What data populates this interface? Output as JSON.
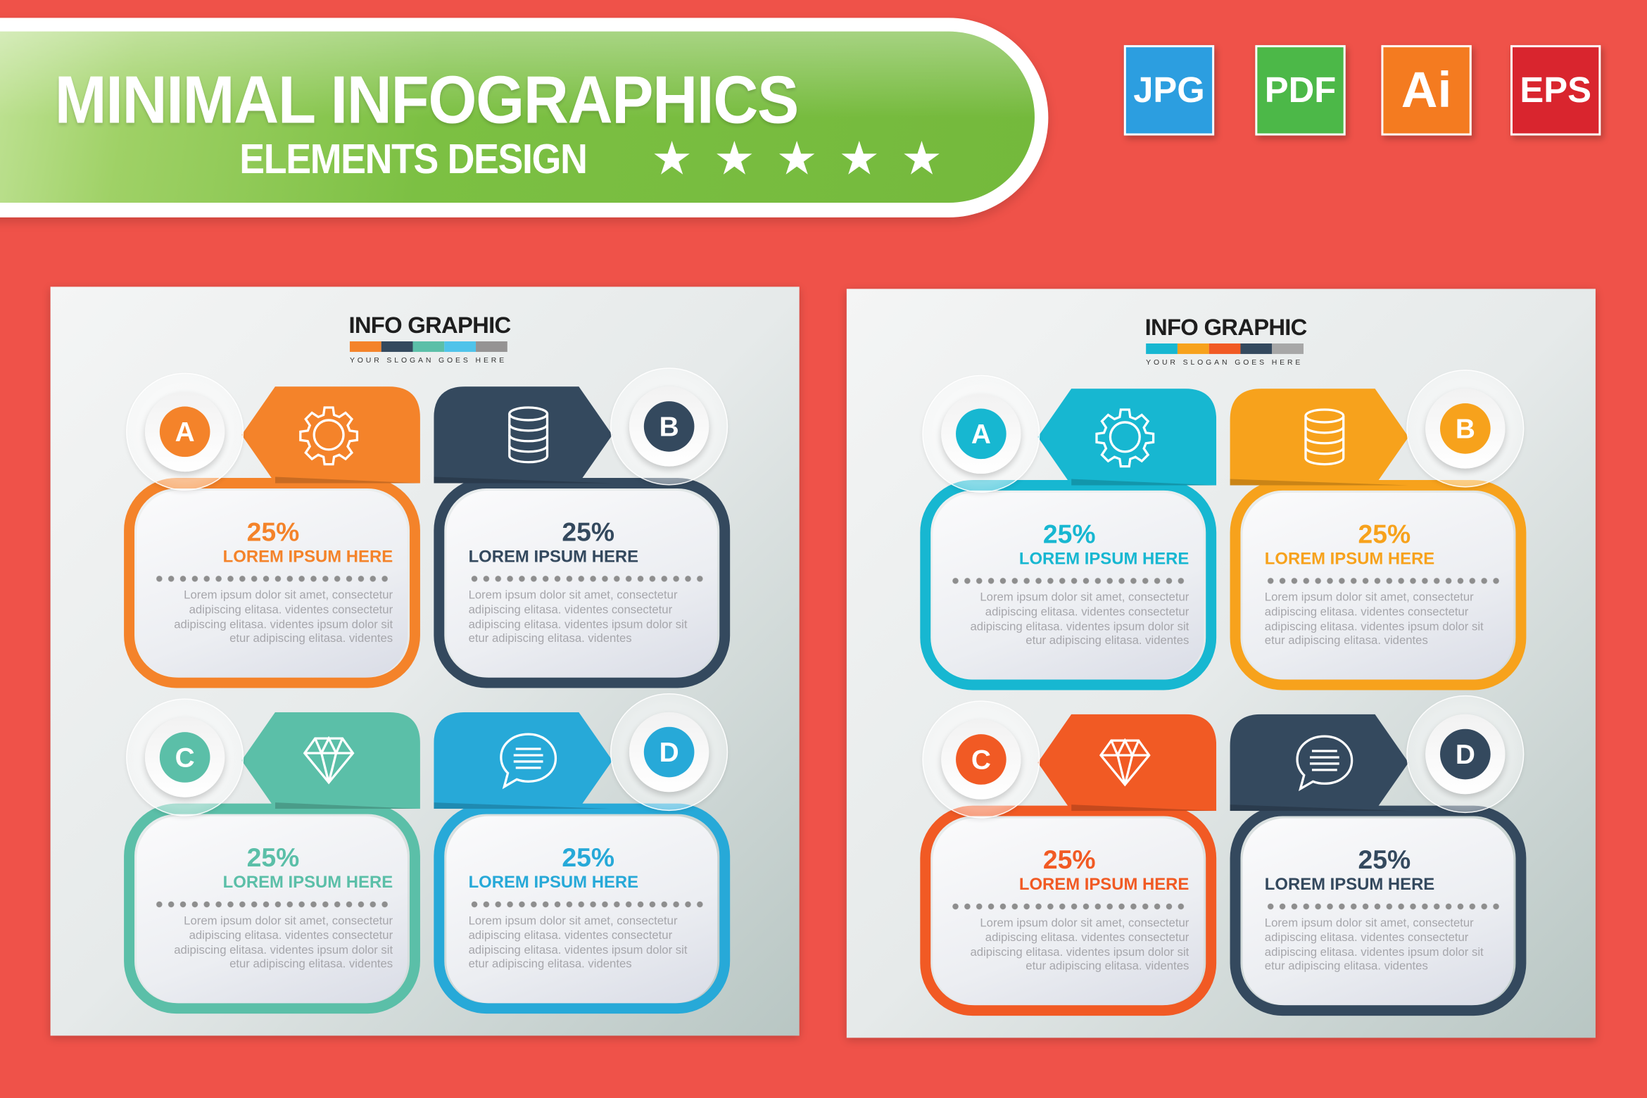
{
  "banner": {
    "title": "MINIMAL INFOGRAPHICS",
    "subtitle": "ELEMENTS DESIGN",
    "stars": 5,
    "colors": {
      "green": "#7cc043",
      "border": "#ffffff"
    }
  },
  "badges": [
    {
      "label": "JPG",
      "color": "#2c9ee0"
    },
    {
      "label": "PDF",
      "color": "#4cb848"
    },
    {
      "label": "Ai",
      "color": "#f47b20"
    },
    {
      "label": "EPS",
      "color": "#d9252e"
    }
  ],
  "background_color": "#ef5249",
  "panels": [
    {
      "title": "INFO GRAPHIC",
      "slogan": "YOUR SLOGAN GOES HERE",
      "bar_colors": [
        "#f4832a",
        "#34495e",
        "#5bbfa8",
        "#4fc3ea",
        "#959393"
      ],
      "cards": [
        {
          "letter": "A",
          "icon": "gear-icon",
          "color": "#f4832a",
          "percent": "25%",
          "title": "LOREM IPSUM HERE",
          "body": [
            "Lorem ipsum dolor sit amet, consectetur",
            "adipiscing elitasa. videntes  consectetur",
            "adipiscing elitasa. videntes ipsum dolor sit",
            "etur adipiscing elitasa. videntes"
          ],
          "title_color": "#f4832a",
          "pct_color": "#f4832a"
        },
        {
          "letter": "B",
          "icon": "database-icon",
          "color": "#34495e",
          "percent": "25%",
          "title": "LOREM IPSUM HERE",
          "body": [
            "Lorem ipsum dolor sit amet, consectetur",
            "adipiscing elitasa. videntes  consectetur",
            "adipiscing elitasa. videntes ipsum dolor sit",
            "etur adipiscing elitasa. videntes"
          ],
          "title_color": "#34495e",
          "pct_color": "#34495e"
        },
        {
          "letter": "C",
          "icon": "diamond-icon",
          "color": "#5bbfa8",
          "percent": "25%",
          "title": "LOREM IPSUM HERE",
          "body": [
            "Lorem ipsum dolor sit amet, consectetur",
            "adipiscing elitasa. videntes  consectetur",
            "adipiscing elitasa. videntes ipsum dolor sit",
            "etur adipiscing elitasa. videntes"
          ],
          "title_color": "#5bbfa8",
          "pct_color": "#5bbfa8"
        },
        {
          "letter": "D",
          "icon": "chat-icon",
          "color": "#27a9d8",
          "percent": "25%",
          "title": "LOREM IPSUM HERE",
          "body": [
            "Lorem ipsum dolor sit amet, consectetur",
            "adipiscing elitasa. videntes  consectetur",
            "adipiscing elitasa. videntes ipsum dolor sit",
            "etur adipiscing elitasa. videntes"
          ],
          "title_color": "#27a9d8",
          "pct_color": "#27a9d8"
        }
      ]
    },
    {
      "title": "INFO GRAPHIC",
      "slogan": "YOUR SLOGAN GOES HERE",
      "bar_colors": [
        "#17b7d1",
        "#f7a21c",
        "#f15a24",
        "#34495e",
        "#a7a7a7"
      ],
      "cards": [
        {
          "letter": "A",
          "icon": "gear-icon",
          "color": "#17b7d1",
          "percent": "25%",
          "title": "LOREM IPSUM HERE",
          "body": [
            "Lorem ipsum dolor sit amet, consectetur",
            "adipiscing elitasa. videntes  consectetur",
            "adipiscing elitasa. videntes ipsum dolor sit",
            "etur adipiscing elitasa. videntes"
          ],
          "title_color": "#17b7d1",
          "pct_color": "#17b7d1"
        },
        {
          "letter": "B",
          "icon": "database-icon",
          "color": "#f7a21c",
          "percent": "25%",
          "title": "LOREM IPSUM HERE",
          "body": [
            "Lorem ipsum dolor sit amet, consectetur",
            "adipiscing elitasa. videntes  consectetur",
            "adipiscing elitasa. videntes ipsum dolor sit",
            "etur adipiscing elitasa. videntes"
          ],
          "title_color": "#f7a21c",
          "pct_color": "#f7a21c"
        },
        {
          "letter": "C",
          "icon": "diamond-icon",
          "color": "#f15a24",
          "percent": "25%",
          "title": "LOREM IPSUM HERE",
          "body": [
            "Lorem ipsum dolor sit amet, consectetur",
            "adipiscing elitasa. videntes  consectetur",
            "adipiscing elitasa. videntes ipsum dolor sit",
            "etur adipiscing elitasa. videntes"
          ],
          "title_color": "#f15a24",
          "pct_color": "#f15a24"
        },
        {
          "letter": "D",
          "icon": "chat-icon",
          "color": "#34495e",
          "percent": "25%",
          "title": "LOREM IPSUM HERE",
          "body": [
            "Lorem ipsum dolor sit amet, consectetur",
            "adipiscing elitasa. videntes  consectetur",
            "adipiscing elitasa. videntes ipsum dolor sit",
            "etur adipiscing elitasa. videntes"
          ],
          "title_color": "#34495e",
          "pct_color": "#34495e"
        }
      ]
    }
  ]
}
